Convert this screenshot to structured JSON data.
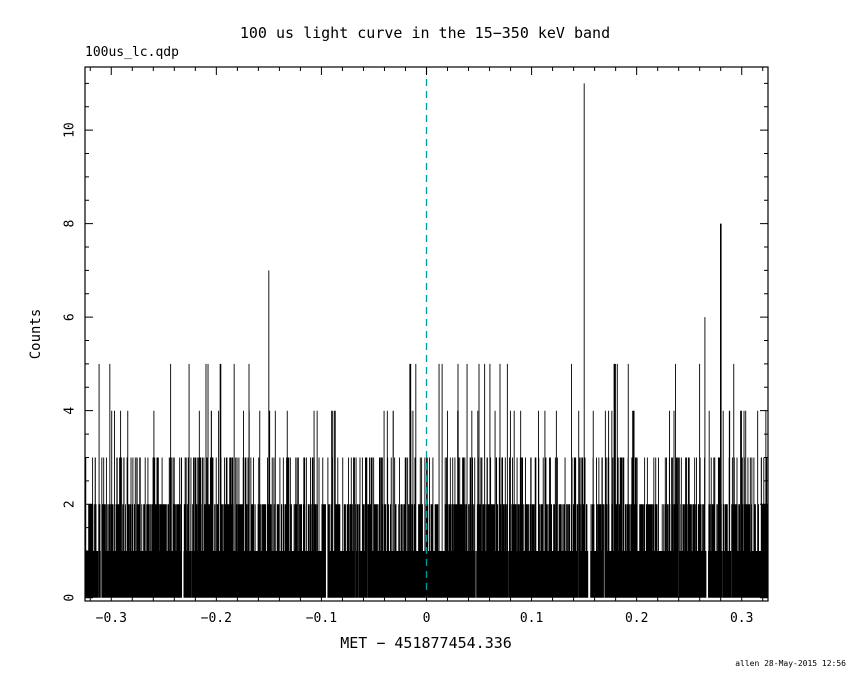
{
  "chart": {
    "title": "100 us light curve in the 15−350 keV band",
    "filename": "100us_lc.qdp",
    "ylabel": "Counts",
    "xlabel": "MET − 451877454.336",
    "credit": "allen 28-May-2015 12:56"
  },
  "chart_data": {
    "type": "bar",
    "title": "100 us light curve in the 15-350 keV band",
    "xlabel": "MET - 451877454.336",
    "ylabel": "Counts",
    "description": "Dense 100-microsecond binned photon-count light curve; Poisson-like noise baseline (counts mostly 0-5) with distinct outlier spikes and a dashed marker line at time zero.",
    "xlim": [
      -0.325,
      0.325
    ],
    "ylim": [
      -0.07,
      11.35
    ],
    "x_major_ticks": [
      -0.3,
      -0.2,
      -0.1,
      0,
      0.1,
      0.2,
      0.3
    ],
    "x_tick_labels": [
      "−0.3",
      "−0.2",
      "−0.1",
      "0",
      "0.1",
      "0.2",
      "0.3"
    ],
    "x_minor_step": 0.02,
    "y_major_ticks": [
      0,
      2,
      4,
      6,
      8,
      10
    ],
    "y_tick_labels": [
      "0",
      "2",
      "4",
      "6",
      "8",
      "10"
    ],
    "y_minor_step": 0.5,
    "n_bins": 4000,
    "baseline": {
      "distribution": "poisson",
      "lambda": 1.0,
      "seed": 20150528,
      "max_clamp": 5
    },
    "peaks": [
      {
        "x": -0.226,
        "counts": 5
      },
      {
        "x": -0.208,
        "counts": 5
      },
      {
        "x": -0.196,
        "counts": 5,
        "wide": true
      },
      {
        "x": -0.183,
        "counts": 5
      },
      {
        "x": -0.15,
        "counts": 7
      },
      {
        "x": -0.09,
        "counts": 4,
        "wide": true
      },
      {
        "x": -0.015,
        "counts": 5
      },
      {
        "x": 0.012,
        "counts": 5
      },
      {
        "x": 0.03,
        "counts": 5
      },
      {
        "x": 0.05,
        "counts": 5
      },
      {
        "x": 0.07,
        "counts": 5
      },
      {
        "x": 0.077,
        "counts": 5
      },
      {
        "x": 0.15,
        "counts": 11
      },
      {
        "x": 0.18,
        "counts": 5
      },
      {
        "x": 0.192,
        "counts": 5
      },
      {
        "x": 0.26,
        "counts": 5
      },
      {
        "x": 0.265,
        "counts": 6
      },
      {
        "x": 0.28,
        "counts": 8,
        "wide": true
      }
    ],
    "zero_gaps": [
      -0.232,
      -0.095,
      0.155,
      0.267
    ],
    "marker_line": {
      "x": 0,
      "style": "dashed",
      "color": "#009b9b"
    },
    "bar_color": "#000000",
    "frame_color": "#000000",
    "grid": false,
    "legend": null
  }
}
